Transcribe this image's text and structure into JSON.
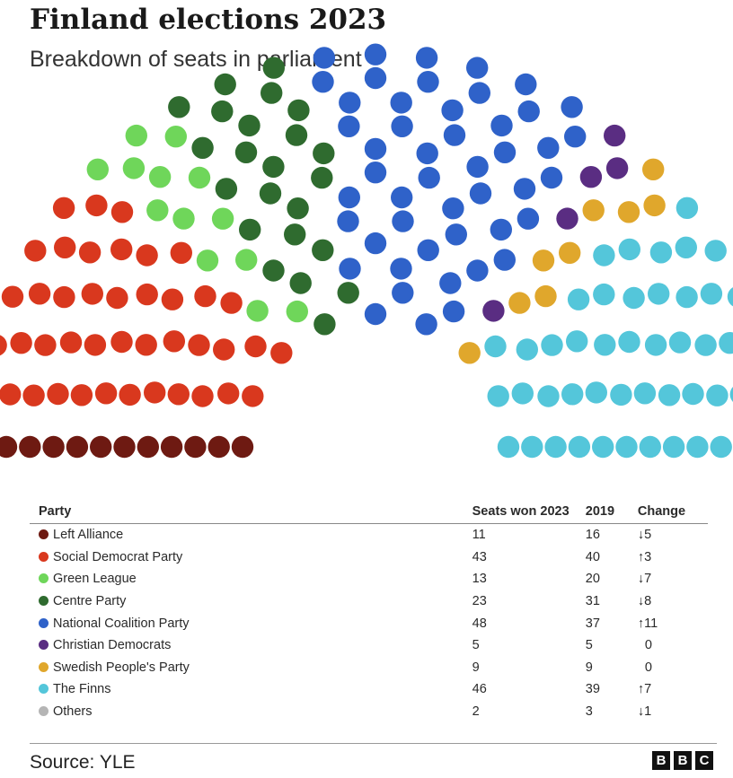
{
  "header": {
    "title": "Finland elections 2023",
    "subtitle": "Breakdown of seats in parliament"
  },
  "table": {
    "headers": [
      "Party",
      "Seats won 2023",
      "2019",
      "Change"
    ]
  },
  "chart_data": {
    "type": "parliament",
    "total_seats": 200,
    "columns": [
      "Party",
      "Seats won 2023",
      "2019",
      "Change"
    ],
    "parties": [
      {
        "name": "Left Alliance",
        "seats": 11,
        "seats_2019": 16,
        "change": "↓5",
        "color": "#6e1a12"
      },
      {
        "name": "Social Democrat Party",
        "seats": 43,
        "seats_2019": 40,
        "change": "↑3",
        "color": "#d9381e"
      },
      {
        "name": "Green League",
        "seats": 13,
        "seats_2019": 20,
        "change": "↓7",
        "color": "#6fd65a"
      },
      {
        "name": "Centre Party",
        "seats": 23,
        "seats_2019": 31,
        "change": "↓8",
        "color": "#2f6b2f"
      },
      {
        "name": "National Coalition Party",
        "seats": 48,
        "seats_2019": 37,
        "change": "↑11",
        "color": "#2f62c9"
      },
      {
        "name": "Christian Democrats",
        "seats": 5,
        "seats_2019": 5,
        "change": "0",
        "color": "#5a2d82"
      },
      {
        "name": "Swedish People's Party",
        "seats": 9,
        "seats_2019": 9,
        "change": "0",
        "color": "#e0a72c"
      },
      {
        "name": "The Finns",
        "seats": 46,
        "seats_2019": 39,
        "change": "↑7",
        "color": "#54c6da"
      },
      {
        "name": "Others",
        "seats": 2,
        "seats_2019": 3,
        "change": "↓1",
        "color": "#b5b5b5"
      }
    ]
  },
  "footer": {
    "source": "Source: YLE",
    "logo": [
      "B",
      "B",
      "C"
    ]
  }
}
